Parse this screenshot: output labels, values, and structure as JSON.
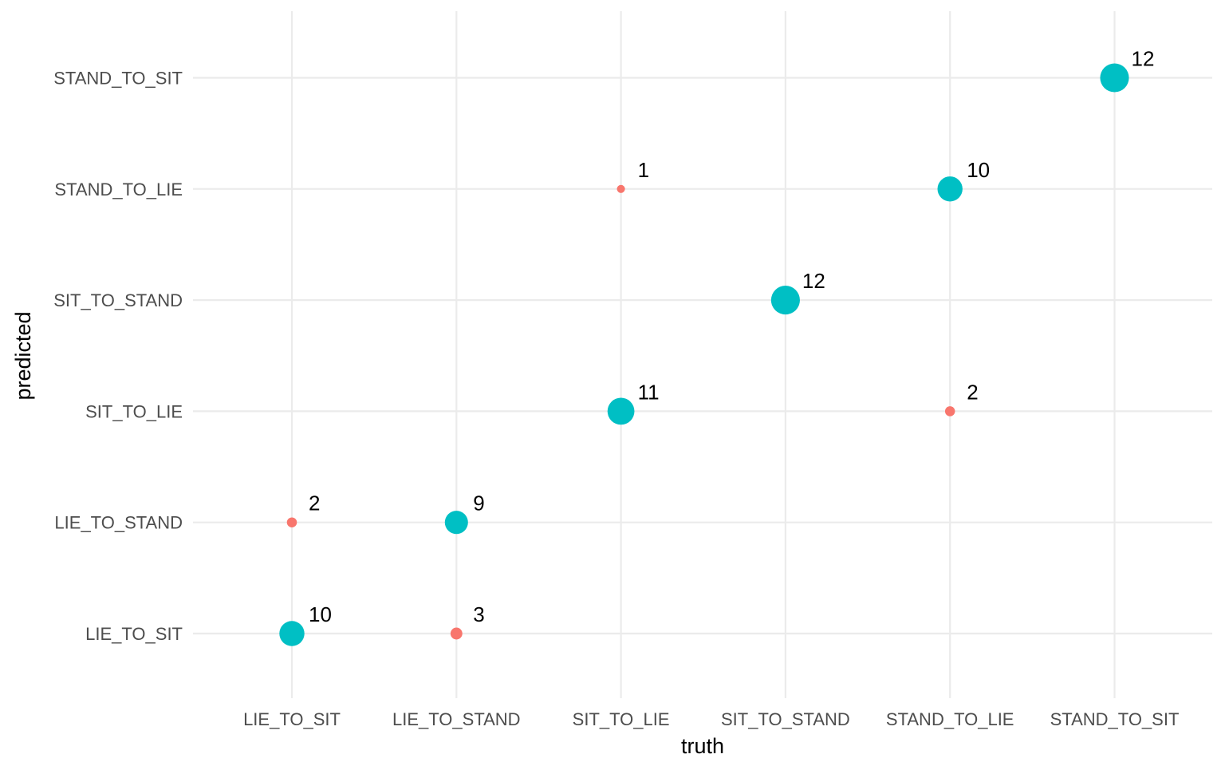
{
  "chart_data": {
    "type": "scatter",
    "xlabel": "truth",
    "ylabel": "predicted",
    "x_categories": [
      "LIE_TO_SIT",
      "LIE_TO_STAND",
      "SIT_TO_LIE",
      "SIT_TO_STAND",
      "STAND_TO_LIE",
      "STAND_TO_SIT"
    ],
    "y_categories": [
      "LIE_TO_SIT",
      "LIE_TO_STAND",
      "SIT_TO_LIE",
      "SIT_TO_STAND",
      "STAND_TO_LIE",
      "STAND_TO_SIT"
    ],
    "grid": true,
    "legend": "none",
    "colors": {
      "correct": "#00bfc4",
      "incorrect": "#f8766d"
    },
    "points": [
      {
        "truth": "LIE_TO_SIT",
        "predicted": "LIE_TO_SIT",
        "n": 10,
        "correct": true
      },
      {
        "truth": "LIE_TO_SIT",
        "predicted": "LIE_TO_STAND",
        "n": 2,
        "correct": false
      },
      {
        "truth": "LIE_TO_STAND",
        "predicted": "LIE_TO_SIT",
        "n": 3,
        "correct": false
      },
      {
        "truth": "LIE_TO_STAND",
        "predicted": "LIE_TO_STAND",
        "n": 9,
        "correct": true
      },
      {
        "truth": "SIT_TO_LIE",
        "predicted": "SIT_TO_LIE",
        "n": 11,
        "correct": true
      },
      {
        "truth": "SIT_TO_LIE",
        "predicted": "STAND_TO_LIE",
        "n": 1,
        "correct": false
      },
      {
        "truth": "SIT_TO_STAND",
        "predicted": "SIT_TO_STAND",
        "n": 12,
        "correct": true
      },
      {
        "truth": "STAND_TO_LIE",
        "predicted": "SIT_TO_LIE",
        "n": 2,
        "correct": false
      },
      {
        "truth": "STAND_TO_LIE",
        "predicted": "STAND_TO_LIE",
        "n": 10,
        "correct": true
      },
      {
        "truth": "STAND_TO_SIT",
        "predicted": "STAND_TO_SIT",
        "n": 12,
        "correct": true
      }
    ]
  }
}
